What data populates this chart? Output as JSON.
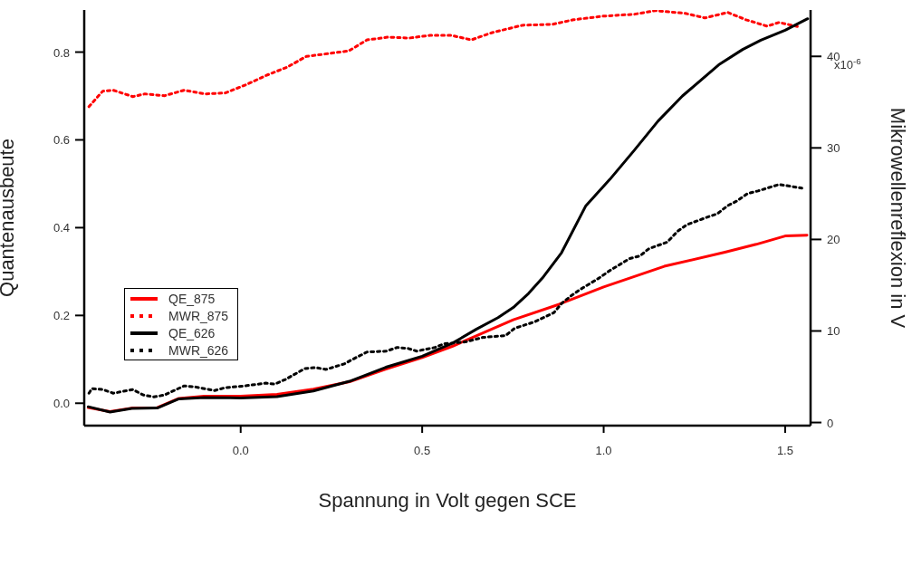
{
  "chart_data": {
    "type": "line",
    "xlabel": "Spannung in Volt gegen SCE",
    "ylabel": "Quantenausbeute",
    "y2label": "Mikrowellenreflexion in V",
    "xlim": [
      -0.431,
      1.57
    ],
    "xticks": [
      {
        "value": 0,
        "label": "0.0"
      },
      {
        "value": 0.5,
        "label": "0.5"
      },
      {
        "value": 1,
        "label": "1.0"
      },
      {
        "value": 1.5,
        "label": "1.5"
      }
    ],
    "ylim": [
      -0.051,
      0.896
    ],
    "yticks": [
      {
        "value": 0,
        "label": "0.0"
      },
      {
        "value": 0.2,
        "label": "0.2"
      },
      {
        "value": 0.4,
        "label": "0.4"
      },
      {
        "value": 0.6,
        "label": "0.6"
      },
      {
        "value": 0.8,
        "label": "0.8"
      }
    ],
    "y2lim": [
      -0.34,
      45.07
    ],
    "y2ticks": [
      0,
      10,
      20,
      30,
      40
    ],
    "annotations": [
      "x10$^{-6}$"
    ],
    "grid": false,
    "legend": "left",
    "marker": "none",
    "series": [
      {
        "name": "QE_875",
        "color": "#ff0000",
        "line_style": "solid",
        "x": [
          -0.42,
          -0.36,
          -0.3,
          -0.23,
          -0.17,
          -0.1,
          0,
          0.1,
          0.2,
          0.3,
          0.4,
          0.5,
          0.584,
          0.751,
          0.876,
          1.0,
          1.167,
          1.334,
          1.42,
          1.5,
          1.56
        ],
        "values": [
          -0.01,
          -0.019,
          -0.011,
          -0.01,
          0.011,
          0.016,
          0.016,
          0.02,
          0.032,
          0.049,
          0.078,
          0.104,
          0.13,
          0.19,
          0.225,
          0.265,
          0.312,
          0.344,
          0.362,
          0.381,
          0.383
        ]
      },
      {
        "name": "MWR_875",
        "color": "#ff0000",
        "line_style": "dotted",
        "axis": "y2",
        "x": [
          -0.418,
          -0.38,
          -0.351,
          -0.297,
          -0.264,
          -0.21,
          -0.156,
          -0.097,
          -0.043,
          0.015,
          0.069,
          0.127,
          0.181,
          0.24,
          0.298,
          0.348,
          0.406,
          0.464,
          0.522,
          0.58,
          0.635,
          0.693,
          0.776,
          0.859,
          0.917,
          1.0,
          1.084,
          1.142,
          1.225,
          1.279,
          1.342,
          1.392,
          1.45,
          1.483,
          1.541
        ],
        "values": [
          34.5,
          36.2,
          36.3,
          35.6,
          35.9,
          35.7,
          36.3,
          35.9,
          36.0,
          36.9,
          37.9,
          38.8,
          40.0,
          40.3,
          40.6,
          41.8,
          42.1,
          42.0,
          42.3,
          42.3,
          41.8,
          42.6,
          43.4,
          43.5,
          44.0,
          44.4,
          44.6,
          45.0,
          44.7,
          44.2,
          44.8,
          44.0,
          43.3,
          43.7,
          43.2
        ]
      },
      {
        "name": "QE_626",
        "color": "#000000",
        "line_style": "solid",
        "x": [
          -0.42,
          -0.36,
          -0.3,
          -0.23,
          -0.17,
          -0.1,
          0,
          0.1,
          0.2,
          0.3,
          0.4,
          0.5,
          0.584,
          0.65,
          0.709,
          0.751,
          0.793,
          0.834,
          0.884,
          0.951,
          1.017,
          1.084,
          1.15,
          1.217,
          1.317,
          1.383,
          1.433,
          1.5,
          1.562
        ],
        "values": [
          -0.008,
          -0.02,
          -0.012,
          -0.011,
          0.01,
          0.013,
          0.012,
          0.015,
          0.028,
          0.05,
          0.082,
          0.107,
          0.137,
          0.169,
          0.195,
          0.218,
          0.25,
          0.288,
          0.343,
          0.45,
          0.51,
          0.576,
          0.643,
          0.7,
          0.771,
          0.806,
          0.827,
          0.85,
          0.876
        ]
      },
      {
        "name": "MWR_626",
        "color": "#000000",
        "line_style": "dotted",
        "axis": "y2",
        "x": [
          -0.418,
          -0.41,
          -0.38,
          -0.351,
          -0.297,
          -0.268,
          -0.239,
          -0.21,
          -0.156,
          -0.127,
          -0.072,
          -0.043,
          0.011,
          0.069,
          0.094,
          0.123,
          0.177,
          0.206,
          0.235,
          0.285,
          0.318,
          0.348,
          0.402,
          0.431,
          0.46,
          0.485,
          0.535,
          0.56,
          0.618,
          0.668,
          0.73,
          0.755,
          0.81,
          0.863,
          0.884,
          0.909,
          0.934,
          0.988,
          1.017,
          1.071,
          1.1,
          1.125,
          1.175,
          1.204,
          1.229,
          1.283,
          1.313,
          1.342,
          1.367,
          1.396,
          1.425,
          1.45,
          1.483,
          1.517,
          1.546
        ],
        "values": [
          3.2,
          3.7,
          3.6,
          3.2,
          3.6,
          3.0,
          2.8,
          3.0,
          4.0,
          3.9,
          3.5,
          3.8,
          4.0,
          4.3,
          4.2,
          4.7,
          5.9,
          6.0,
          5.8,
          6.4,
          7.1,
          7.7,
          7.8,
          8.2,
          8.1,
          7.8,
          8.2,
          8.6,
          8.8,
          9.3,
          9.5,
          10.3,
          11.0,
          12.0,
          13.0,
          13.8,
          14.5,
          15.8,
          16.6,
          17.9,
          18.2,
          19.0,
          19.7,
          20.9,
          21.6,
          22.4,
          22.8,
          23.7,
          24.2,
          25.0,
          25.3,
          25.6,
          26.0,
          25.8,
          25.6
        ]
      }
    ]
  }
}
